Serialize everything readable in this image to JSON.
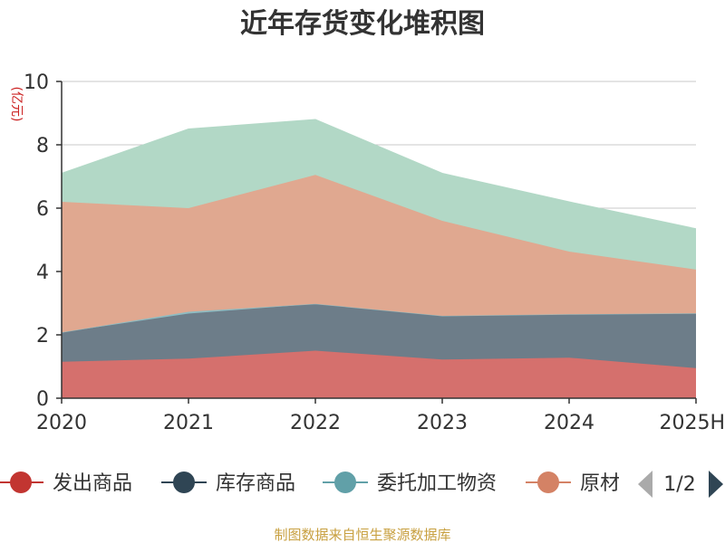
{
  "chart_data": {
    "type": "area",
    "title": "近年存货变化堆积图",
    "ylabel": "(亿元)",
    "ylim": [
      0,
      10
    ],
    "y_ticks": [
      "0",
      "2",
      "4",
      "6",
      "8",
      "10"
    ],
    "categories": [
      "2020",
      "2021",
      "2022",
      "2023",
      "2024",
      "2025H"
    ],
    "stacked": true,
    "grid": true,
    "legend_position": "bottom",
    "series": [
      {
        "name": "发出商品",
        "color": "#c23531",
        "fill": "#d5706d",
        "values": [
          1.15,
          1.25,
          1.5,
          1.22,
          1.28,
          0.95
        ]
      },
      {
        "name": "库存商品",
        "color": "#2f4554",
        "fill": "#6d7d89",
        "values": [
          0.93,
          1.42,
          1.48,
          1.38,
          1.37,
          1.73
        ]
      },
      {
        "name": "委托加工物资",
        "color": "#61a0a8",
        "fill": "#8fbcc2",
        "values": [
          0.0,
          0.06,
          0.0,
          0.0,
          0.0,
          0.0
        ]
      },
      {
        "name": "原材料",
        "color": "#d48265",
        "fill": "#e0a890",
        "values": [
          4.12,
          3.27,
          4.07,
          3.0,
          1.98,
          1.38
        ]
      },
      {
        "name": "",
        "color": "#91c7ae",
        "fill": "#b2d8c6",
        "values": [
          0.9,
          2.5,
          1.75,
          1.5,
          1.57,
          1.29
        ]
      }
    ],
    "legend": {
      "items": [
        "发出商品",
        "库存商品",
        "委托加工物资",
        "原材料"
      ],
      "page": "1/2"
    }
  },
  "footer": {
    "source": "制图数据来自恒生聚源数据库"
  }
}
